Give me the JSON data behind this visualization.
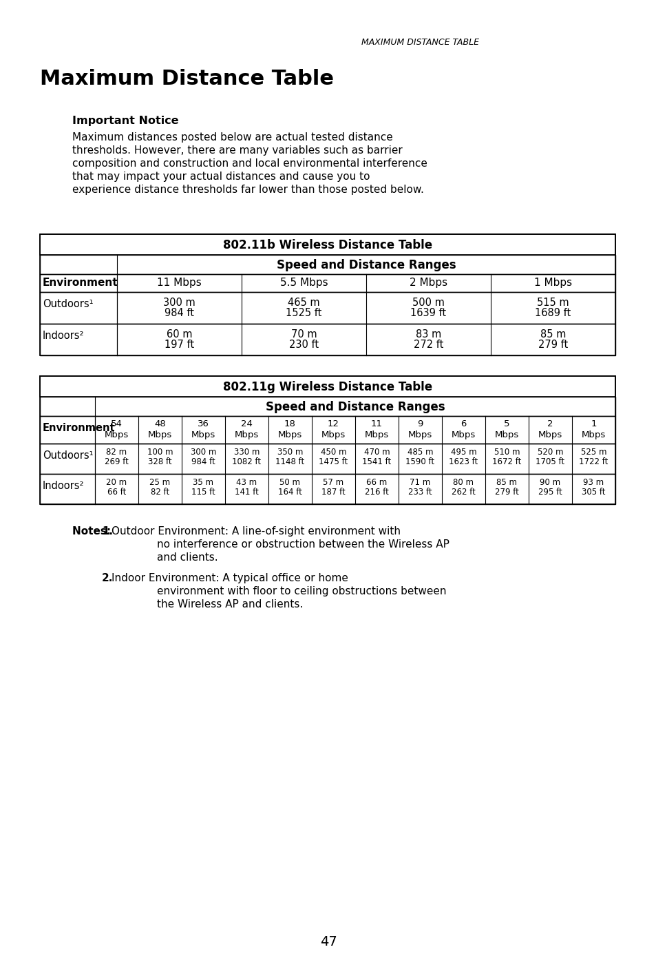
{
  "page_title_header": "MAXIMUM DISTANCE TABLE",
  "main_title": "Maximum Distance Table",
  "important_notice_title": "Important Notice",
  "notice_text_lines": [
    "Maximum distances posted below are actual tested distance",
    "thresholds. However, there are many variables such as barrier",
    "composition and construction and local environmental interference",
    "that may impact your actual distances and cause you to",
    "experience distance thresholds far lower than those posted below."
  ],
  "table1_title": "802.11b Wireless Distance Table",
  "table1_subtitle": "Speed and Distance Ranges",
  "table1_col_header": [
    "Environment",
    "11 Mbps",
    "5.5 Mbps",
    "2 Mbps",
    "1 Mbps"
  ],
  "table1_rows": [
    [
      "Outdoors¹",
      "300 m\n984 ft",
      "465 m\n1525 ft",
      "500 m\n1639 ft",
      "515 m\n1689 ft"
    ],
    [
      "Indoors²",
      "60 m\n197 ft",
      "70 m\n230 ft",
      "83 m\n272 ft",
      "85 m\n279 ft"
    ]
  ],
  "table2_title": "802.11g Wireless Distance Table",
  "table2_subtitle": "Speed and Distance Ranges",
  "table2_col_header": [
    "Environment",
    "54\nMbps",
    "48\nMbps",
    "36\nMbps",
    "24\nMbps",
    "18\nMbps",
    "12\nMbps",
    "11\nMbps",
    "9\nMbps",
    "6\nMbps",
    "5\nMbps",
    "2\nMbps",
    "1\nMbps"
  ],
  "table2_rows": [
    [
      "Outdoors¹",
      "82 m\n269 ft",
      "100 m\n328 ft",
      "300 m\n984 ft",
      "330 m\n1082 ft",
      "350 m\n1148 ft",
      "450 m\n1475 ft",
      "470 m\n1541 ft",
      "485 m\n1590 ft",
      "495 m\n1623 ft",
      "510 m\n1672 ft",
      "520 m\n1705 ft",
      "525 m\n1722 ft"
    ],
    [
      "Indoors²",
      "20 m\n66 ft",
      "25 m\n82 ft",
      "35 m\n115 ft",
      "43 m\n141 ft",
      "50 m\n164 ft",
      "57 m\n187 ft",
      "66 m\n216 ft",
      "71 m\n233 ft",
      "80 m\n262 ft",
      "85 m\n279 ft",
      "90 m\n295 ft",
      "93 m\n305 ft"
    ]
  ],
  "page_number": "47",
  "bg_color": "#ffffff"
}
